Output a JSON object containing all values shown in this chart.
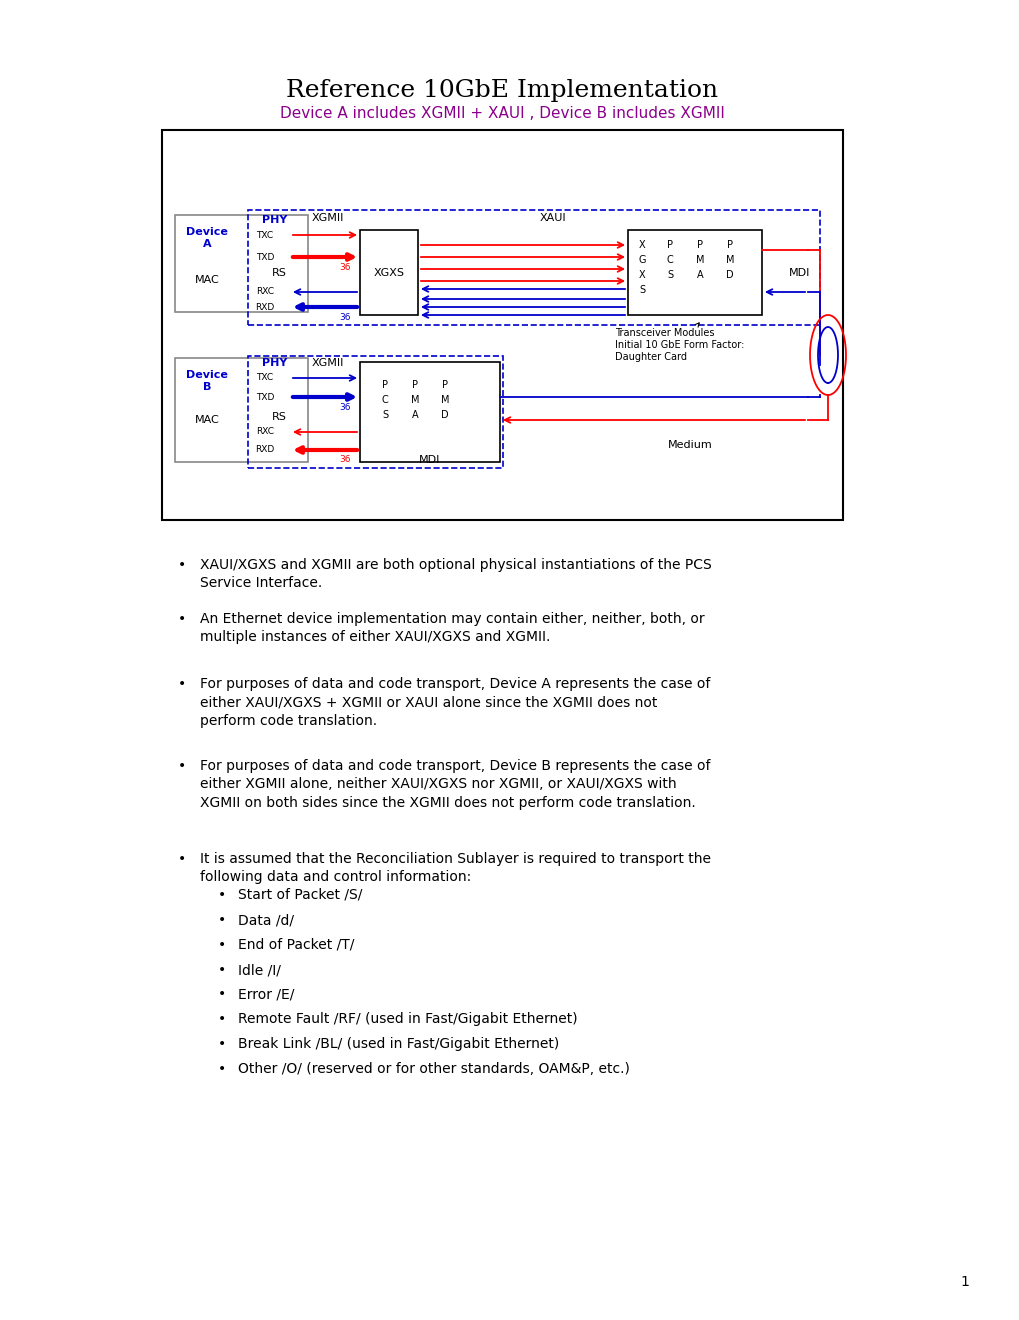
{
  "title": "Reference 10GbE Implementation",
  "subtitle": "Device A includes XGMII + XAUI , Device B includes XGMII",
  "subtitle_color": "#8B008B",
  "title_color": "#000000",
  "bg_color": "#ffffff",
  "bullet_points": [
    "XAUI/XGXS and XGMII are both optional physical instantiations of the PCS\nService Interface.",
    "An Ethernet device implementation may contain either, neither, both, or\nmultiple instances of either XAUI/XGXS and XGMII.",
    "For purposes of data and code transport, Device A represents the case of\neither XAUI/XGXS + XGMII or XAUI alone since the XGMII does not\nperform code translation.",
    "For purposes of data and code transport, Device B represents the case of\neither XGMII alone, neither XAUI/XGXS nor XGMII, or XAUI/XGXS with\nXGMII on both sides since the XGMII does not perform code translation.",
    "It is assumed that the Reconciliation Sublayer is required to transport the\nfollowing data and control information:"
  ],
  "sub_bullets": [
    "Start of Packet /S/",
    "Data /d/",
    "End of Packet /T/",
    "Idle /I/",
    "Error /E/",
    "Remote Fault /RF/ (used in Fast/Gigabit Ethernet)",
    "Break Link /BL/ (used in Fast/Gigabit Ethernet)",
    "Other /O/ (reserved or for other standards, OAM&P, etc.)"
  ],
  "page_number": "1",
  "red": "#FF0000",
  "blue": "#0000CD",
  "black": "#000000",
  "gray": "#888888",
  "purple": "#8B008B"
}
